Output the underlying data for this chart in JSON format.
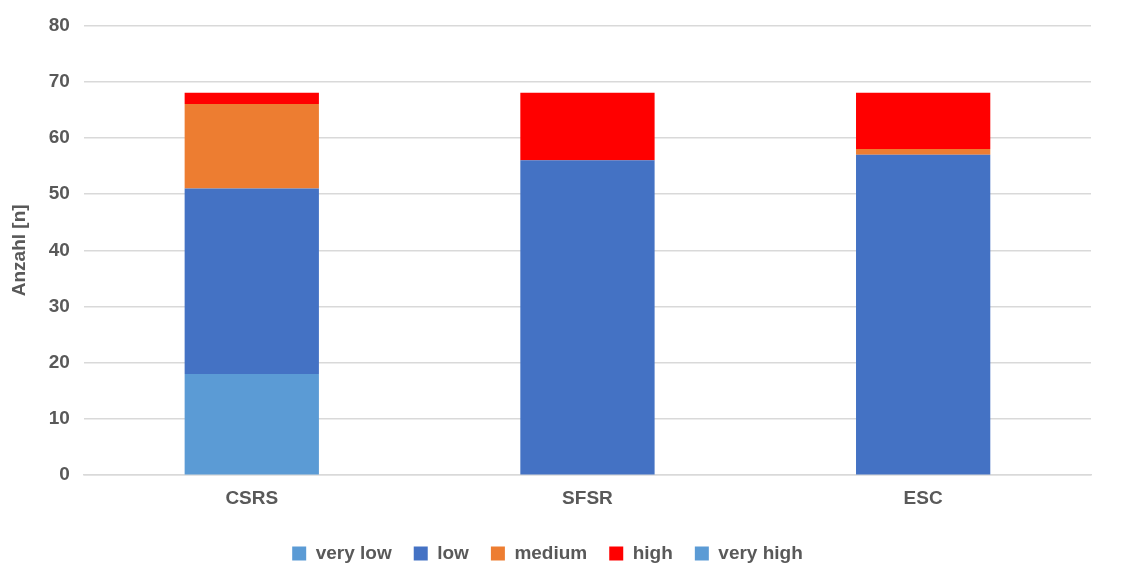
{
  "chart_data": {
    "type": "bar",
    "stacked": true,
    "ylabel": "Anzahl [n]",
    "categories": [
      "CSRS",
      "SFSR",
      "ESC"
    ],
    "series": [
      {
        "name": "very low",
        "color": "#5b9bd5",
        "values": [
          18,
          0,
          0
        ]
      },
      {
        "name": "low",
        "color": "#4472c4",
        "values": [
          33,
          56,
          57
        ]
      },
      {
        "name": "medium",
        "color": "#ed7d31",
        "values": [
          15,
          0,
          1
        ]
      },
      {
        "name": "high",
        "color": "#ff0000",
        "values": [
          2,
          12,
          10
        ]
      },
      {
        "name": "very high",
        "color": "#5b9bd5",
        "values": [
          0,
          0,
          0
        ]
      }
    ],
    "ylim": [
      0,
      80
    ],
    "yticks": [
      0,
      10,
      20,
      30,
      40,
      50,
      60,
      70,
      80
    ],
    "grid": "y",
    "legend": "bottom"
  }
}
